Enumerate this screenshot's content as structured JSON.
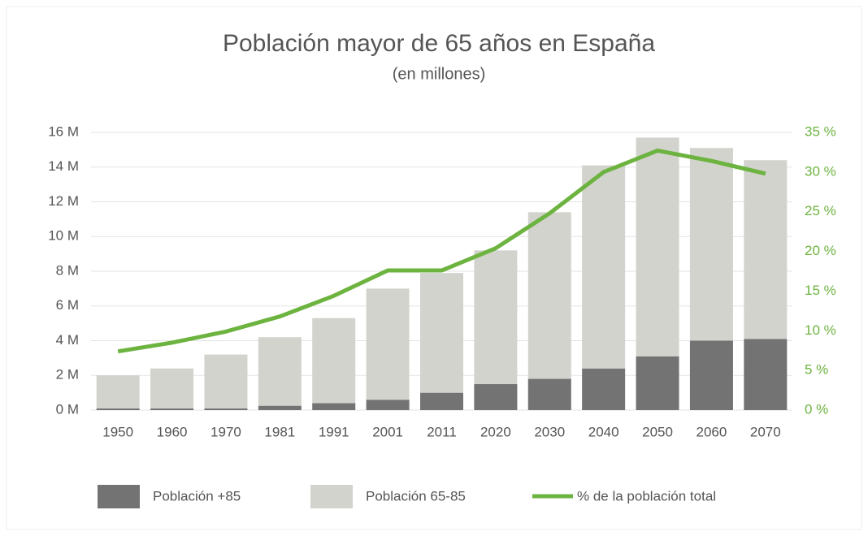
{
  "chart_data": {
    "type": "bar",
    "stacked": true,
    "title": "Población mayor de 65 años en España",
    "subtitle": "(en millones)",
    "categories": [
      "1950",
      "1960",
      "1970",
      "1981",
      "1991",
      "2001",
      "2011",
      "2020",
      "2030",
      "2040",
      "2050",
      "2060",
      "2070"
    ],
    "series": [
      {
        "name": "Población +85",
        "type": "bar",
        "color": "#737373",
        "values": [
          0.1,
          0.1,
          0.1,
          0.25,
          0.4,
          0.6,
          1.0,
          1.5,
          1.8,
          2.4,
          3.1,
          4.0,
          4.1
        ]
      },
      {
        "name": "Población 65-85",
        "type": "bar",
        "color": "#d2d3cd",
        "values": [
          1.9,
          2.3,
          3.1,
          3.95,
          4.9,
          6.4,
          6.9,
          7.7,
          9.6,
          11.7,
          12.6,
          11.1,
          10.3
        ]
      },
      {
        "name": "% de la población total",
        "type": "line",
        "axis": "y2",
        "color": "#6db33f",
        "values": [
          7.4,
          8.5,
          9.9,
          11.8,
          14.4,
          17.6,
          17.6,
          20.4,
          24.8,
          30.0,
          32.7,
          31.4,
          29.8
        ]
      }
    ],
    "ylim": [
      0,
      16
    ],
    "yticks": [
      {
        "value": 0,
        "label": "0 M"
      },
      {
        "value": 2,
        "label": "2 M"
      },
      {
        "value": 4,
        "label": "4 M"
      },
      {
        "value": 6,
        "label": "6 M"
      },
      {
        "value": 8,
        "label": "8 M"
      },
      {
        "value": 10,
        "label": "10 M"
      },
      {
        "value": 12,
        "label": "12 M"
      },
      {
        "value": 14,
        "label": "14 M"
      },
      {
        "value": 16,
        "label": "16 M"
      }
    ],
    "y2lim": [
      0,
      35
    ],
    "y2ticks": [
      {
        "value": 0,
        "label": "0 %"
      },
      {
        "value": 5,
        "label": "5 %"
      },
      {
        "value": 10,
        "label": "10 %"
      },
      {
        "value": 15,
        "label": "15 %"
      },
      {
        "value": 20,
        "label": "20 %"
      },
      {
        "value": 25,
        "label": "25 %"
      },
      {
        "value": 30,
        "label": "30 %"
      },
      {
        "value": 35,
        "label": "35 %"
      }
    ],
    "grid": true,
    "legend": "bottom"
  }
}
